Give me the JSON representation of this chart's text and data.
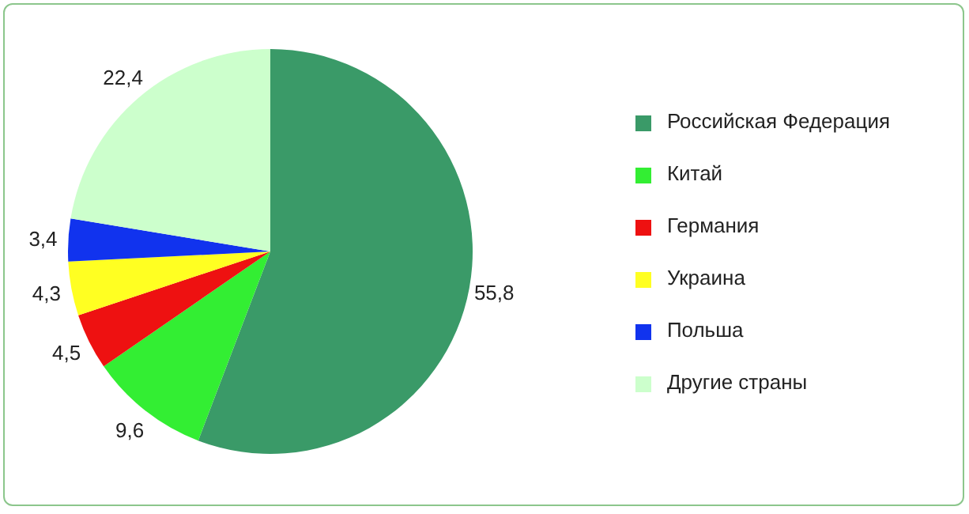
{
  "chart_data": {
    "type": "pie",
    "categories": [
      "Российская Федерация",
      "Китай",
      "Германия",
      "Украина",
      "Польша",
      "Другие страны"
    ],
    "values": [
      55.8,
      9.6,
      4.5,
      4.3,
      3.4,
      22.4
    ],
    "value_labels": [
      "55,8",
      "9,6",
      "4,5",
      "4,3",
      "3,4",
      "22,4"
    ],
    "colors": [
      "#3a9a68",
      "#33ee33",
      "#ee1111",
      "#ffff22",
      "#1133ee",
      "#ccffcc"
    ],
    "legend": "right"
  }
}
